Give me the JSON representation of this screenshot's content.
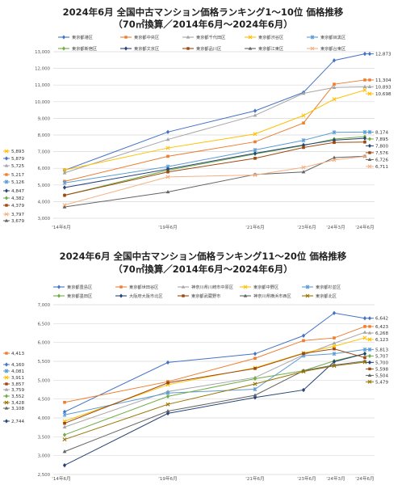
{
  "chart_data": [
    {
      "type": "line",
      "title": "2024年6月 全国中古マンション価格ランキング1～10位 価格推移",
      "subtitle": "（70㎡換算／2014年6月～2024年6月）",
      "categories": [
        "'14年6月",
        "'19年6月",
        "'21年6月",
        "'23年6月",
        "'24年3月",
        "'24年6月"
      ],
      "ylim": [
        3000,
        13000
      ],
      "yticks": [
        "3,000",
        "4,000",
        "5,000",
        "6,000",
        "7,000",
        "8,000",
        "9,000",
        "10,000",
        "11,000",
        "12,000",
        "13,000"
      ],
      "grid": true,
      "legend_position": "top",
      "series": [
        {
          "name": "東京都港区",
          "color": "#4472c4",
          "marker": "diamond",
          "values": [
            5879,
            8180,
            9450,
            10560,
            12480,
            12873
          ],
          "label": "12,873"
        },
        {
          "name": "東京都中央区",
          "color": "#ed7d31",
          "marker": "square",
          "values": [
            5217,
            6720,
            7590,
            8720,
            11050,
            11304
          ],
          "label": "11,304"
        },
        {
          "name": "東京都千代田区",
          "color": "#a5a5a5",
          "marker": "triangle",
          "values": [
            5725,
            7730,
            9180,
            10500,
            10850,
            10893
          ],
          "label": "10,893"
        },
        {
          "name": "東京都渋谷区",
          "color": "#ffc000",
          "marker": "x",
          "values": [
            5893,
            7220,
            8060,
            9170,
            10150,
            10698
          ],
          "label": "10,698"
        },
        {
          "name": "東京都目黒区",
          "color": "#5b9bd5",
          "marker": "star",
          "values": [
            5126,
            6100,
            7100,
            7680,
            8160,
            8174
          ],
          "label": "8,174"
        },
        {
          "name": "東京都新宿区",
          "color": "#70ad47",
          "marker": "diamond",
          "values": [
            4382,
            5880,
            6860,
            7370,
            7760,
            7895
          ],
          "label": "7,895"
        },
        {
          "name": "東京都文京区",
          "color": "#264478",
          "marker": "diamond",
          "values": [
            4847,
            5950,
            6900,
            7400,
            7690,
            7800
          ],
          "label": "7,800"
        },
        {
          "name": "東京都品川区",
          "color": "#9e480e",
          "marker": "square",
          "values": [
            4379,
            5780,
            6600,
            7250,
            7550,
            7576
          ],
          "label": "7,576"
        },
        {
          "name": "東京都江東区",
          "color": "#636363",
          "marker": "triangle",
          "values": [
            3679,
            4580,
            5630,
            5780,
            6640,
            6726
          ],
          "label": "6,726"
        },
        {
          "name": "東京都台東区",
          "color": "#f4b183",
          "marker": "x",
          "values": [
            3797,
            5480,
            5600,
            6050,
            6500,
            6711
          ],
          "label": "6,711"
        }
      ],
      "left_labels": [
        {
          "text": "5,893",
          "color": "#ffc000",
          "marker": "x"
        },
        {
          "text": "5,879",
          "color": "#4472c4",
          "marker": "diamond"
        },
        {
          "text": "5,725",
          "color": "#a5a5a5",
          "marker": "triangle"
        },
        {
          "text": "5,217",
          "color": "#ed7d31",
          "marker": "square"
        },
        {
          "text": "5,126",
          "color": "#5b9bd5",
          "marker": "star"
        },
        {
          "text": "4,847",
          "color": "#264478",
          "marker": "diamond"
        },
        {
          "text": "4,382",
          "color": "#70ad47",
          "marker": "diamond"
        },
        {
          "text": "4,379",
          "color": "#9e480e",
          "marker": "square"
        },
        {
          "text": "3,797",
          "color": "#f4b183",
          "marker": "x"
        },
        {
          "text": "3,679",
          "color": "#636363",
          "marker": "triangle"
        }
      ]
    },
    {
      "type": "line",
      "title": "2024年6月 全国中古マンション価格ランキング11～20位 価格推移",
      "subtitle": "（70㎡換算／2014年6月～2024年6月）",
      "categories": [
        "'14年6月",
        "'19年6月",
        "'21年6月",
        "'23年6月",
        "'24年3月",
        "'24年6月"
      ],
      "ylim": [
        2500,
        7000
      ],
      "yticks": [
        "2,500",
        "3,000",
        "3,500",
        "4,000",
        "4,500",
        "5,000",
        "5,500",
        "6,000",
        "6,500",
        "7,000"
      ],
      "grid": true,
      "legend_position": "top",
      "series": [
        {
          "name": "東京都豊島区",
          "color": "#4472c4",
          "marker": "diamond",
          "values": [
            4160,
            5470,
            5700,
            6180,
            6780,
            6642
          ],
          "label": "6,642"
        },
        {
          "name": "東京都世田谷区",
          "color": "#ed7d31",
          "marker": "square",
          "values": [
            4413,
            4960,
            5580,
            6050,
            6120,
            6423
          ],
          "label": "6,423"
        },
        {
          "name": "神奈川県川崎市中原区",
          "color": "#a5a5a5",
          "marker": "triangle",
          "values": [
            3759,
            4700,
            5070,
            5670,
            5980,
            6268
          ],
          "label": "6,268"
        },
        {
          "name": "東京都中野区",
          "color": "#ffc000",
          "marker": "x",
          "values": [
            3911,
            4880,
            5330,
            5720,
            5900,
            6123
          ],
          "label": "6,123"
        },
        {
          "name": "東京都杉並区",
          "color": "#5b9bd5",
          "marker": "star",
          "values": [
            4081,
            4660,
            4760,
            5650,
            5700,
            5813
          ],
          "label": "5,813"
        },
        {
          "name": "東京都墨田区",
          "color": "#70ad47",
          "marker": "diamond",
          "values": [
            3552,
            4570,
            5040,
            5250,
            5510,
            5707
          ],
          "label": "5,707"
        },
        {
          "name": "大阪府大阪市北区",
          "color": "#264478",
          "marker": "diamond",
          "values": [
            2744,
            4120,
            4540,
            4740,
            5490,
            5700
          ],
          "label": "5,700"
        },
        {
          "name": "東京都武蔵野市",
          "color": "#9e480e",
          "marker": "square",
          "values": [
            3857,
            4930,
            5310,
            5710,
            5830,
            5598
          ],
          "label": "5,598"
        },
        {
          "name": "神奈川県横浜市西区",
          "color": "#636363",
          "marker": "triangle",
          "values": [
            3108,
            4180,
            4600,
            5250,
            5400,
            5504
          ],
          "label": "5,504"
        },
        {
          "name": "東京都北区",
          "color": "#997300",
          "marker": "x",
          "values": [
            3428,
            4360,
            4900,
            5230,
            5380,
            5479
          ],
          "label": "5,479"
        }
      ],
      "left_labels": [
        {
          "text": "4,413",
          "color": "#ed7d31",
          "marker": "square"
        },
        {
          "text": "4,160",
          "color": "#4472c4",
          "marker": "diamond"
        },
        {
          "text": "4,081",
          "color": "#5b9bd5",
          "marker": "star"
        },
        {
          "text": "3,911",
          "color": "#ffc000",
          "marker": "x"
        },
        {
          "text": "3,857",
          "color": "#9e480e",
          "marker": "square"
        },
        {
          "text": "3,759",
          "color": "#a5a5a5",
          "marker": "triangle"
        },
        {
          "text": "3,552",
          "color": "#70ad47",
          "marker": "diamond"
        },
        {
          "text": "3,428",
          "color": "#997300",
          "marker": "x"
        },
        {
          "text": "3,108",
          "color": "#636363",
          "marker": "triangle"
        },
        {
          "text": "2,744",
          "color": "#264478",
          "marker": "diamond"
        }
      ]
    }
  ]
}
